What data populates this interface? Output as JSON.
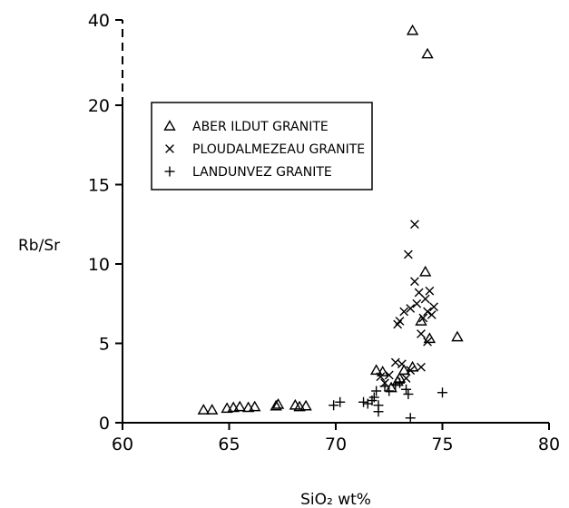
{
  "chart_data": {
    "type": "scatter",
    "xlabel": "SiO₂  wt%",
    "ylabel": "Rb/Sr",
    "xlim": [
      60,
      80
    ],
    "ylim": [
      0,
      40
    ],
    "x_ticks": [
      "60",
      "65",
      "70",
      "75",
      "80"
    ],
    "y_ticks": [
      "0",
      "5",
      "10",
      "15",
      "20",
      "40"
    ],
    "y_axis_broken_between": [
      20,
      40
    ],
    "legend_position": "upper-left",
    "series": [
      {
        "name": "ABER ILDUT GRANITE",
        "marker": "triangle",
        "points": [
          [
            63.8,
            0.8
          ],
          [
            64.2,
            0.8
          ],
          [
            64.9,
            0.9
          ],
          [
            65.2,
            0.95
          ],
          [
            65.5,
            1.0
          ],
          [
            65.9,
            0.95
          ],
          [
            66.2,
            1.0
          ],
          [
            67.2,
            1.05
          ],
          [
            67.3,
            1.15
          ],
          [
            68.1,
            1.1
          ],
          [
            68.3,
            1.0
          ],
          [
            68.6,
            1.05
          ],
          [
            71.9,
            3.3
          ],
          [
            72.2,
            3.2
          ],
          [
            72.6,
            2.2
          ],
          [
            72.9,
            2.6
          ],
          [
            73.0,
            2.8
          ],
          [
            73.2,
            3.3
          ],
          [
            73.6,
            3.5
          ],
          [
            74.0,
            6.4
          ],
          [
            74.2,
            9.5
          ],
          [
            74.4,
            5.3
          ],
          [
            75.7,
            5.4
          ],
          [
            73.6,
            37.5
          ],
          [
            74.3,
            32.0
          ]
        ]
      },
      {
        "name": "PLOUDALMEZEAU GRANITE",
        "marker": "x",
        "points": [
          [
            72.1,
            2.9
          ],
          [
            72.3,
            2.5
          ],
          [
            72.5,
            3.0
          ],
          [
            72.8,
            3.8
          ],
          [
            72.9,
            6.2
          ],
          [
            73.0,
            6.4
          ],
          [
            73.1,
            3.7
          ],
          [
            73.2,
            7.0
          ],
          [
            73.3,
            2.8
          ],
          [
            73.4,
            10.6
          ],
          [
            73.5,
            3.3
          ],
          [
            73.5,
            7.2
          ],
          [
            73.7,
            12.5
          ],
          [
            73.7,
            8.9
          ],
          [
            73.8,
            7.5
          ],
          [
            73.9,
            8.2
          ],
          [
            74.0,
            3.5
          ],
          [
            74.0,
            5.6
          ],
          [
            74.1,
            6.6
          ],
          [
            74.2,
            7.8
          ],
          [
            74.3,
            7.0
          ],
          [
            74.4,
            8.3
          ],
          [
            74.3,
            5.1
          ],
          [
            74.5,
            6.8
          ],
          [
            74.6,
            7.3
          ]
        ]
      },
      {
        "name": "LANDUNVEZ GRANITE",
        "marker": "plus",
        "points": [
          [
            69.9,
            1.1
          ],
          [
            70.2,
            1.3
          ],
          [
            71.3,
            1.3
          ],
          [
            71.5,
            1.2
          ],
          [
            71.7,
            1.4
          ],
          [
            71.8,
            1.6
          ],
          [
            71.9,
            2.0
          ],
          [
            72.0,
            1.1
          ],
          [
            72.0,
            0.7
          ],
          [
            72.3,
            2.3
          ],
          [
            72.5,
            2.0
          ],
          [
            72.8,
            2.4
          ],
          [
            73.0,
            2.5
          ],
          [
            73.3,
            2.1
          ],
          [
            73.4,
            1.8
          ],
          [
            73.5,
            0.3
          ],
          [
            75.0,
            1.9
          ]
        ]
      }
    ]
  }
}
